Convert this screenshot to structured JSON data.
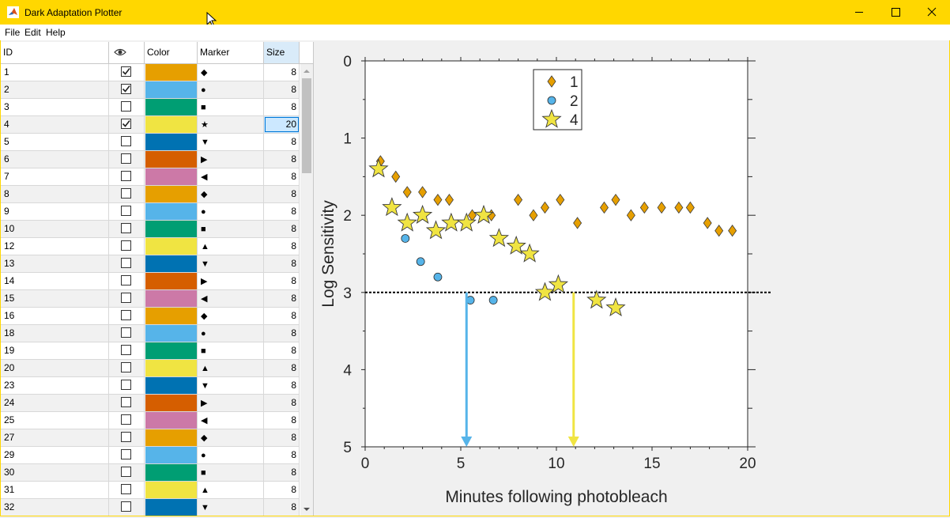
{
  "window": {
    "title": "Dark Adaptation Plotter"
  },
  "menu": {
    "file": "File",
    "edit": "Edit",
    "help": "Help"
  },
  "table": {
    "headers": {
      "id": "ID",
      "visible_icon": "eye-icon",
      "color": "Color",
      "marker": "Marker",
      "size": "Size"
    },
    "rows": [
      {
        "id": "1",
        "checked": true,
        "color": "#e69f00",
        "marker": "◆",
        "size": "8"
      },
      {
        "id": "2",
        "checked": true,
        "color": "#56b4e9",
        "marker": "●",
        "size": "8"
      },
      {
        "id": "3",
        "checked": false,
        "color": "#009e73",
        "marker": "■",
        "size": "8"
      },
      {
        "id": "4",
        "checked": true,
        "color": "#f0e442",
        "marker": "★",
        "size": "20",
        "selected": true
      },
      {
        "id": "5",
        "checked": false,
        "color": "#0072b2",
        "marker": "▼",
        "size": "8"
      },
      {
        "id": "6",
        "checked": false,
        "color": "#d55e00",
        "marker": "▶",
        "size": "8"
      },
      {
        "id": "7",
        "checked": false,
        "color": "#cc79a7",
        "marker": "◀",
        "size": "8"
      },
      {
        "id": "8",
        "checked": false,
        "color": "#e69f00",
        "marker": "◆",
        "size": "8"
      },
      {
        "id": "9",
        "checked": false,
        "color": "#56b4e9",
        "marker": "●",
        "size": "8"
      },
      {
        "id": "10",
        "checked": false,
        "color": "#009e73",
        "marker": "■",
        "size": "8"
      },
      {
        "id": "12",
        "checked": false,
        "color": "#f0e442",
        "marker": "▲",
        "size": "8"
      },
      {
        "id": "13",
        "checked": false,
        "color": "#0072b2",
        "marker": "▼",
        "size": "8"
      },
      {
        "id": "14",
        "checked": false,
        "color": "#d55e00",
        "marker": "▶",
        "size": "8"
      },
      {
        "id": "15",
        "checked": false,
        "color": "#cc79a7",
        "marker": "◀",
        "size": "8"
      },
      {
        "id": "16",
        "checked": false,
        "color": "#e69f00",
        "marker": "◆",
        "size": "8"
      },
      {
        "id": "18",
        "checked": false,
        "color": "#56b4e9",
        "marker": "●",
        "size": "8"
      },
      {
        "id": "19",
        "checked": false,
        "color": "#009e73",
        "marker": "■",
        "size": "8"
      },
      {
        "id": "20",
        "checked": false,
        "color": "#f0e442",
        "marker": "▲",
        "size": "8"
      },
      {
        "id": "23",
        "checked": false,
        "color": "#0072b2",
        "marker": "▼",
        "size": "8"
      },
      {
        "id": "24",
        "checked": false,
        "color": "#d55e00",
        "marker": "▶",
        "size": "8"
      },
      {
        "id": "25",
        "checked": false,
        "color": "#cc79a7",
        "marker": "◀",
        "size": "8"
      },
      {
        "id": "27",
        "checked": false,
        "color": "#e69f00",
        "marker": "◆",
        "size": "8"
      },
      {
        "id": "29",
        "checked": false,
        "color": "#56b4e9",
        "marker": "●",
        "size": "8"
      },
      {
        "id": "30",
        "checked": false,
        "color": "#009e73",
        "marker": "■",
        "size": "8"
      },
      {
        "id": "31",
        "checked": false,
        "color": "#f0e442",
        "marker": "▲",
        "size": "8"
      },
      {
        "id": "32",
        "checked": false,
        "color": "#0072b2",
        "marker": "▼",
        "size": "8"
      }
    ]
  },
  "chart_data": {
    "type": "scatter",
    "xlabel": "Minutes following photobleach",
    "ylabel": "Log Sensitivity",
    "xlim": [
      0,
      20
    ],
    "ylim": [
      0,
      5
    ],
    "y_reversed": true,
    "xticks": [
      "0",
      "5",
      "10",
      "15",
      "20"
    ],
    "yticks": [
      "0",
      "1",
      "2",
      "3",
      "4",
      "5"
    ],
    "legend_position": "top",
    "threshold_line": 3,
    "series": [
      {
        "name": "1",
        "marker": "diamond",
        "color": "#e69f00",
        "x": [
          0.8,
          1.6,
          2.2,
          3.0,
          3.8,
          4.4,
          5.6,
          6.6,
          8.0,
          8.8,
          9.4,
          10.2,
          11.1,
          12.5,
          13.1,
          13.9,
          14.6,
          15.5,
          16.4,
          17.0,
          17.9,
          18.5,
          19.2
        ],
        "y": [
          1.3,
          1.5,
          1.7,
          1.7,
          1.8,
          1.8,
          2.0,
          2.0,
          1.8,
          2.0,
          1.9,
          1.8,
          2.1,
          1.9,
          1.8,
          2.0,
          1.9,
          1.9,
          1.9,
          1.9,
          2.1,
          2.2,
          2.2
        ]
      },
      {
        "name": "2",
        "marker": "circle",
        "color": "#56b4e9",
        "x": [
          2.1,
          2.9,
          3.8,
          5.5,
          6.7
        ],
        "y": [
          2.3,
          2.6,
          2.8,
          3.1,
          3.1
        ]
      },
      {
        "name": "4",
        "marker": "star",
        "color": "#f0e442",
        "x": [
          0.7,
          1.4,
          2.2,
          3.0,
          3.7,
          4.5,
          5.3,
          6.2,
          7.0,
          7.9,
          8.6,
          9.4,
          10.1,
          12.1,
          13.1
        ],
        "y": [
          1.4,
          1.9,
          2.1,
          2.0,
          2.2,
          2.1,
          2.1,
          2.0,
          2.3,
          2.4,
          2.5,
          3.0,
          2.9,
          3.1,
          3.2
        ]
      }
    ],
    "arrows": [
      {
        "x": 5.3,
        "from": 3,
        "to": 5,
        "color": "#56b4e9"
      },
      {
        "x": 10.9,
        "from": 3,
        "to": 5,
        "color": "#f0e442"
      }
    ]
  }
}
